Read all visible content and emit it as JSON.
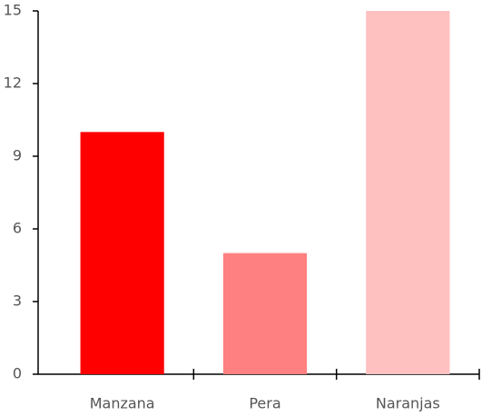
{
  "chart_data": {
    "type": "bar",
    "categories": [
      "Manzana",
      "Pera",
      "Naranjas"
    ],
    "values": [
      10,
      5,
      15
    ],
    "colors": [
      "#ff0000",
      "#ff8080",
      "#ffc0c0"
    ],
    "ylim": [
      0,
      15
    ],
    "yticks": [
      0,
      3,
      6,
      9,
      12,
      15
    ],
    "grid": false
  }
}
